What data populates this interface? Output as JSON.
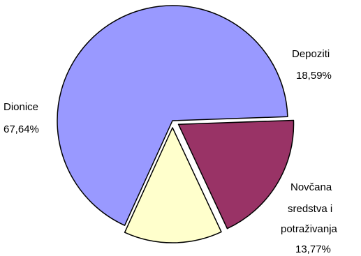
{
  "chart_data": {
    "type": "pie",
    "title": "",
    "slices": [
      {
        "label": "Dionice",
        "value": 67.64,
        "value_label": "67,64%",
        "color": "#9999FF",
        "exploded": false
      },
      {
        "label": "Depoziti",
        "value": 18.59,
        "value_label": "18,59%",
        "color": "#993366",
        "exploded": true
      },
      {
        "label_lines": [
          "Novčana",
          "sredstva i",
          "potraživanja"
        ],
        "value": 13.77,
        "value_label": "13,77%",
        "color": "#FFFFCC",
        "exploded": true
      }
    ],
    "legend": "none",
    "slice_border_color": "#000000"
  }
}
